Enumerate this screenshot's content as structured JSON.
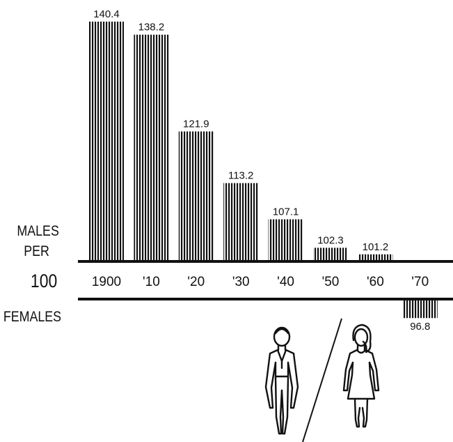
{
  "chart_data": {
    "type": "bar",
    "title": "",
    "xlabel": "",
    "ylabel": "",
    "side_label": [
      "MALES",
      "PER",
      "100",
      "FEMALES"
    ],
    "baseline": 100,
    "categories": [
      "1900",
      "'10",
      "'20",
      "'30",
      "'40",
      "'50",
      "'60",
      "'70"
    ],
    "values": [
      140.4,
      138.2,
      121.9,
      113.2,
      107.1,
      102.3,
      101.2,
      96.8
    ],
    "value_labels": [
      "140.4",
      "138.2",
      "121.9",
      "113.2",
      "107.1",
      "102.3",
      "101.2",
      "96.8"
    ],
    "ylim": [
      96.0,
      141.0
    ],
    "grid": false,
    "legend": "none",
    "bar_style": "vertical-hatch",
    "colors": {
      "ink": "#111111",
      "background": "#ffffff"
    },
    "decorations": [
      "male-figure-icon",
      "female-figure-icon",
      "divider-slash"
    ]
  }
}
